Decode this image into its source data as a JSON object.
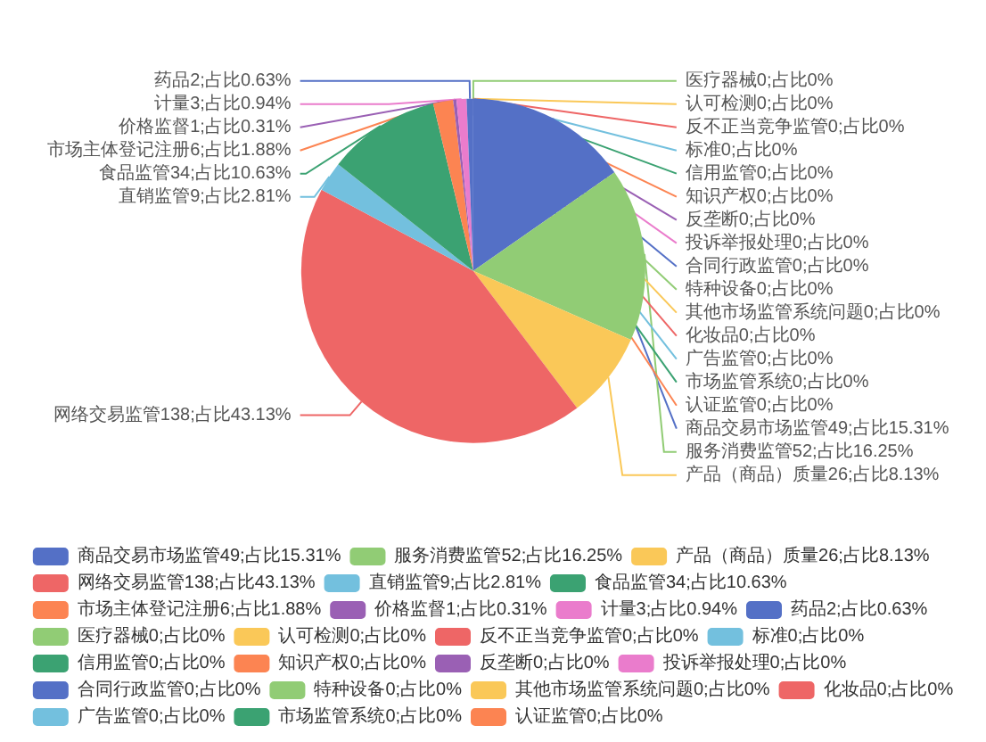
{
  "chart_data": {
    "type": "pie",
    "categories": [
      "商品交易市场监管49;占比15.31%",
      "服务消费监管52;占比16.25%",
      "产品（商品）质量26;占比8.13%",
      "网络交易监管138;占比43.13%",
      "直销监管9;占比2.81%",
      "食品监管34;占比10.63%",
      "市场主体登记注册6;占比1.88%",
      "价格监督1;占比0.31%",
      "计量3;占比0.94%",
      "药品2;占比0.63%",
      "医疗器械0;占比0%",
      "认可检测0;占比0%",
      "反不正当竞争监管0;占比0%",
      "标准0;占比0%",
      "信用监管0;占比0%",
      "知识产权0;占比0%",
      "反垄断0;占比0%",
      "投诉举报处理0;占比0%",
      "合同行政监管0;占比0%",
      "特种设备0;占比0%",
      "其他市场监管系统问题0;占比0%",
      "化妆品0;占比0%",
      "广告监管0;占比0%",
      "市场监管系统0;占比0%",
      "认证监管0;占比0%"
    ],
    "values": [
      49,
      52,
      26,
      138,
      9,
      34,
      6,
      1,
      3,
      2,
      0,
      0,
      0,
      0,
      0,
      0,
      0,
      0,
      0,
      0,
      0,
      0,
      0,
      0,
      0
    ],
    "colors": [
      "#5470c6",
      "#91cc75",
      "#fac858",
      "#ee6666",
      "#73c0de",
      "#3ba272",
      "#fc8452",
      "#9a60b4",
      "#ea7ccc",
      "#5470c6",
      "#91cc75",
      "#fac858",
      "#ee6666",
      "#73c0de",
      "#3ba272",
      "#fc8452",
      "#9a60b4",
      "#ea7ccc",
      "#5470c6",
      "#91cc75",
      "#fac858",
      "#ee6666",
      "#73c0de",
      "#3ba272",
      "#fc8452"
    ],
    "legend": "bottom"
  }
}
